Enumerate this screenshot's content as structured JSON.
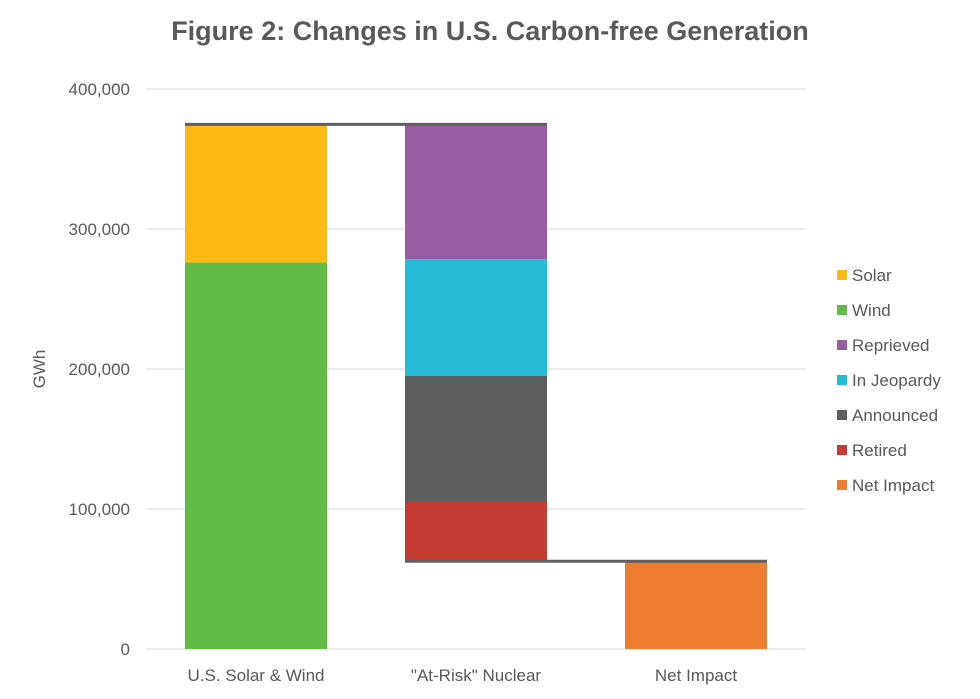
{
  "chart_data": {
    "type": "bar",
    "subtype": "stacked-waterfall",
    "title": "Figure 2: Changes in U.S. Carbon-free Generation",
    "xlabel": "",
    "ylabel": "GWh",
    "ylim": [
      0,
      400000
    ],
    "yticks": [
      0,
      100000,
      200000,
      300000,
      400000
    ],
    "ytick_labels": [
      "0",
      "100,000",
      "200,000",
      "300,000",
      "400,000"
    ],
    "grid": true,
    "legend_position": "right",
    "categories": [
      "U.S. Solar & Wind",
      "\"At-Risk\" Nuclear",
      "Net Impact"
    ],
    "series": [
      {
        "name": "Solar",
        "color": "#FDB913",
        "category": "U.S. Solar & Wind",
        "base": 276000,
        "value": 98000
      },
      {
        "name": "Wind",
        "color": "#62BB46",
        "category": "U.S. Solar & Wind",
        "base": 0,
        "value": 276000
      },
      {
        "name": "Reprieved",
        "color": "#975DA2",
        "category": "\"At-Risk\" Nuclear",
        "base": 278500,
        "value": 95500
      },
      {
        "name": "In Jeopardy",
        "color": "#27BAD6",
        "category": "\"At-Risk\" Nuclear",
        "base": 195000,
        "value": 83500
      },
      {
        "name": "Announced",
        "color": "#5D5E60",
        "category": "\"At-Risk\" Nuclear",
        "base": 105000,
        "value": 90000
      },
      {
        "name": "Retired",
        "color": "#C43B32",
        "category": "\"At-Risk\" Nuclear",
        "base": 62000,
        "value": 43000
      },
      {
        "name": "Net Impact",
        "color": "#ED7D31",
        "category": "Net Impact",
        "base": 0,
        "value": 62000
      }
    ],
    "connectors": [
      {
        "from": "U.S. Solar & Wind",
        "to": "\"At-Risk\" Nuclear",
        "value": 374000
      },
      {
        "from": "\"At-Risk\" Nuclear",
        "to": "Net Impact",
        "value": 62000
      }
    ],
    "legend_order": [
      "Solar",
      "Wind",
      "Reprieved",
      "In Jeopardy",
      "Announced",
      "Retired",
      "Net Impact"
    ]
  }
}
